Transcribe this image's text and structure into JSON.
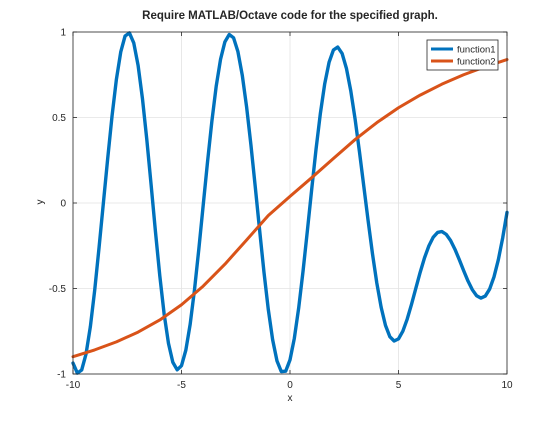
{
  "chart_data": {
    "type": "line",
    "title": "Require MATLAB/Octave code for the specified graph.",
    "xlabel": "x",
    "ylabel": "y",
    "xlim": [
      -10,
      10
    ],
    "ylim": [
      -1,
      1
    ],
    "xticks": [
      -10,
      -5,
      0,
      5,
      10
    ],
    "xtick_labels": [
      "-10",
      "-5",
      "0",
      "5",
      "10"
    ],
    "yticks": [
      -1,
      -0.5,
      0,
      0.5,
      1
    ],
    "ytick_labels": [
      "-1",
      "-0.5",
      "0",
      "0.5",
      "1"
    ],
    "grid": true,
    "legend_position": "top-right",
    "series": [
      {
        "name": "function1",
        "color": "#0072BD",
        "x": [
          -10.0,
          -9.8,
          -9.6,
          -9.4,
          -9.2,
          -9.0,
          -8.8,
          -8.6,
          -8.4,
          -8.2,
          -8.0,
          -7.8,
          -7.6,
          -7.4,
          -7.2,
          -7.0,
          -6.8,
          -6.6,
          -6.4,
          -6.2,
          -6.0,
          -5.8,
          -5.6,
          -5.4,
          -5.2,
          -5.0,
          -4.8,
          -4.6,
          -4.4,
          -4.2,
          -4.0,
          -3.8,
          -3.6,
          -3.4,
          -3.2,
          -3.0,
          -2.8,
          -2.6,
          -2.4,
          -2.2,
          -2.0,
          -1.8,
          -1.6,
          -1.4,
          -1.2,
          -1.0,
          -0.8,
          -0.6,
          -0.4,
          -0.2,
          0.0,
          0.2,
          0.4,
          0.6,
          0.8,
          1.0,
          1.2,
          1.4,
          1.6,
          1.8,
          2.0,
          2.2,
          2.4,
          2.6,
          2.8,
          3.0,
          3.2,
          3.4,
          3.6,
          3.8,
          4.0,
          4.2,
          4.4,
          4.6,
          4.8,
          5.0,
          5.2,
          5.4,
          5.6,
          5.8,
          6.0,
          6.2,
          6.4,
          6.6,
          6.8,
          7.0,
          7.2,
          7.4,
          7.6,
          7.8,
          8.0,
          8.2,
          8.4,
          8.6,
          8.8,
          9.0,
          9.2,
          9.4,
          9.6,
          9.8,
          10.0
        ],
        "y": [
          -0.9359,
          -0.9948,
          -0.9766,
          -0.8833,
          -0.7231,
          -0.5096,
          -0.2613,
          0.0,
          0.2613,
          0.5096,
          0.7231,
          0.8833,
          0.9766,
          0.9948,
          0.9359,
          0.8045,
          0.6113,
          0.3723,
          0.106,
          -0.1676,
          -0.426,
          -0.6496,
          -0.8206,
          -0.9313,
          -0.9756,
          -0.9513,
          -0.8604,
          -0.7088,
          -0.5063,
          -0.2677,
          -0.0126,
          0.241,
          0.4787,
          0.6836,
          0.8407,
          0.9426,
          0.9852,
          0.9659,
          0.885,
          0.7476,
          0.5618,
          0.3388,
          0.0932,
          -0.159,
          -0.4036,
          -0.6229,
          -0.7996,
          -0.9232,
          -0.9859,
          -0.9838,
          -0.9174,
          -0.7912,
          -0.6143,
          -0.3998,
          -0.163,
          0.0801,
          0.3144,
          0.5243,
          0.6971,
          0.8224,
          0.8947,
          0.9119,
          0.8748,
          0.7874,
          0.6565,
          0.4903,
          0.3004,
          0.0988,
          -0.1034,
          -0.2962,
          -0.4678,
          -0.6096,
          -0.7156,
          -0.7816,
          -0.807,
          -0.7946,
          -0.7495,
          -0.6792,
          -0.5924,
          -0.498,
          -0.4047,
          -0.3202,
          -0.2507,
          -0.2005,
          -0.1722,
          -0.1668,
          -0.1834,
          -0.2192,
          -0.2702,
          -0.3308,
          -0.3948,
          -0.4557,
          -0.5069,
          -0.5423,
          -0.5561,
          -0.5441,
          -0.5033,
          -0.4325,
          -0.3322,
          -0.205,
          -0.0551
        ]
      },
      {
        "name": "function2",
        "color": "#D95319",
        "x": [
          -10.0,
          -9.0,
          -8.0,
          -7.0,
          -6.0,
          -5.0,
          -4.0,
          -3.0,
          -2.0,
          -1.0,
          0.0,
          1.0,
          2.0,
          3.0,
          4.0,
          5.0,
          6.0,
          7.0,
          8.0,
          9.0,
          10.0
        ],
        "y": [
          -0.899,
          -0.859,
          -0.812,
          -0.755,
          -0.684,
          -0.595,
          -0.486,
          -0.358,
          -0.216,
          -0.073,
          0.039,
          0.148,
          0.26,
          0.371,
          0.47,
          0.557,
          0.631,
          0.695,
          0.75,
          0.797,
          0.839
        ]
      }
    ]
  }
}
